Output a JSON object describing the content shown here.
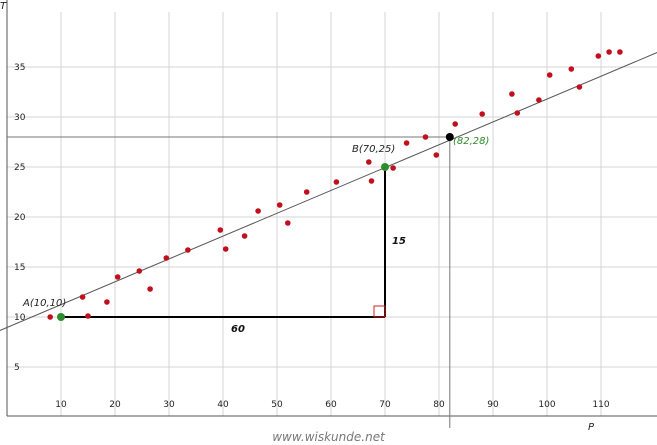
{
  "chart_data": {
    "type": "scatter",
    "xlabel": "P",
    "ylabel": "T",
    "xlim": [
      0,
      113
    ],
    "ylim": [
      0,
      40
    ],
    "grid": true,
    "x_ticks": [
      10,
      20,
      30,
      40,
      50,
      60,
      70,
      80,
      90,
      100,
      110
    ],
    "y_ticks": [
      5,
      10,
      15,
      20,
      25,
      30,
      35
    ],
    "points": [
      {
        "x": 8,
        "y": 10
      },
      {
        "x": 14,
        "y": 12
      },
      {
        "x": 15,
        "y": 10.1
      },
      {
        "x": 18.5,
        "y": 11.5
      },
      {
        "x": 20.5,
        "y": 14
      },
      {
        "x": 24.5,
        "y": 14.6
      },
      {
        "x": 26.5,
        "y": 12.8
      },
      {
        "x": 29.5,
        "y": 15.9
      },
      {
        "x": 33.5,
        "y": 16.7
      },
      {
        "x": 39.5,
        "y": 18.7
      },
      {
        "x": 40.5,
        "y": 16.8
      },
      {
        "x": 44,
        "y": 18.1
      },
      {
        "x": 46.5,
        "y": 20.6
      },
      {
        "x": 50.5,
        "y": 21.2
      },
      {
        "x": 52,
        "y": 19.4
      },
      {
        "x": 55.5,
        "y": 22.5
      },
      {
        "x": 61,
        "y": 23.5
      },
      {
        "x": 67,
        "y": 25.5
      },
      {
        "x": 67.5,
        "y": 23.6
      },
      {
        "x": 71.5,
        "y": 24.9
      },
      {
        "x": 74,
        "y": 27.4
      },
      {
        "x": 77.5,
        "y": 28
      },
      {
        "x": 79.5,
        "y": 26.2
      },
      {
        "x": 83,
        "y": 29.3
      },
      {
        "x": 88,
        "y": 30.3
      },
      {
        "x": 93.5,
        "y": 32.3
      },
      {
        "x": 94.5,
        "y": 30.4
      },
      {
        "x": 98.5,
        "y": 31.7
      },
      {
        "x": 100.5,
        "y": 34.2
      },
      {
        "x": 104.5,
        "y": 34.8
      },
      {
        "x": 106,
        "y": 33
      },
      {
        "x": 109.5,
        "y": 36.1
      },
      {
        "x": 111.5,
        "y": 36.5
      },
      {
        "x": 113.5,
        "y": 36.5
      }
    ],
    "trend_line": {
      "x1": -10,
      "y1": 6.67,
      "x2": 125,
      "y2": 37.5
    },
    "point_a": {
      "x": 10,
      "y": 10,
      "label": "A(10,10)"
    },
    "point_b": {
      "x": 70,
      "y": 25,
      "label": "B(70,25)"
    },
    "point_c": {
      "x": 82,
      "y": 28,
      "label": "(82,28)"
    },
    "run_label": "60",
    "rise_label": "15",
    "colors": {
      "points": "#c0101e",
      "anchor": "#2e8b2e",
      "highlight": "#000000",
      "line": "#555555",
      "grid": "#d4d4d4"
    }
  },
  "footer": {
    "credit": "www.wiskunde.net"
  }
}
